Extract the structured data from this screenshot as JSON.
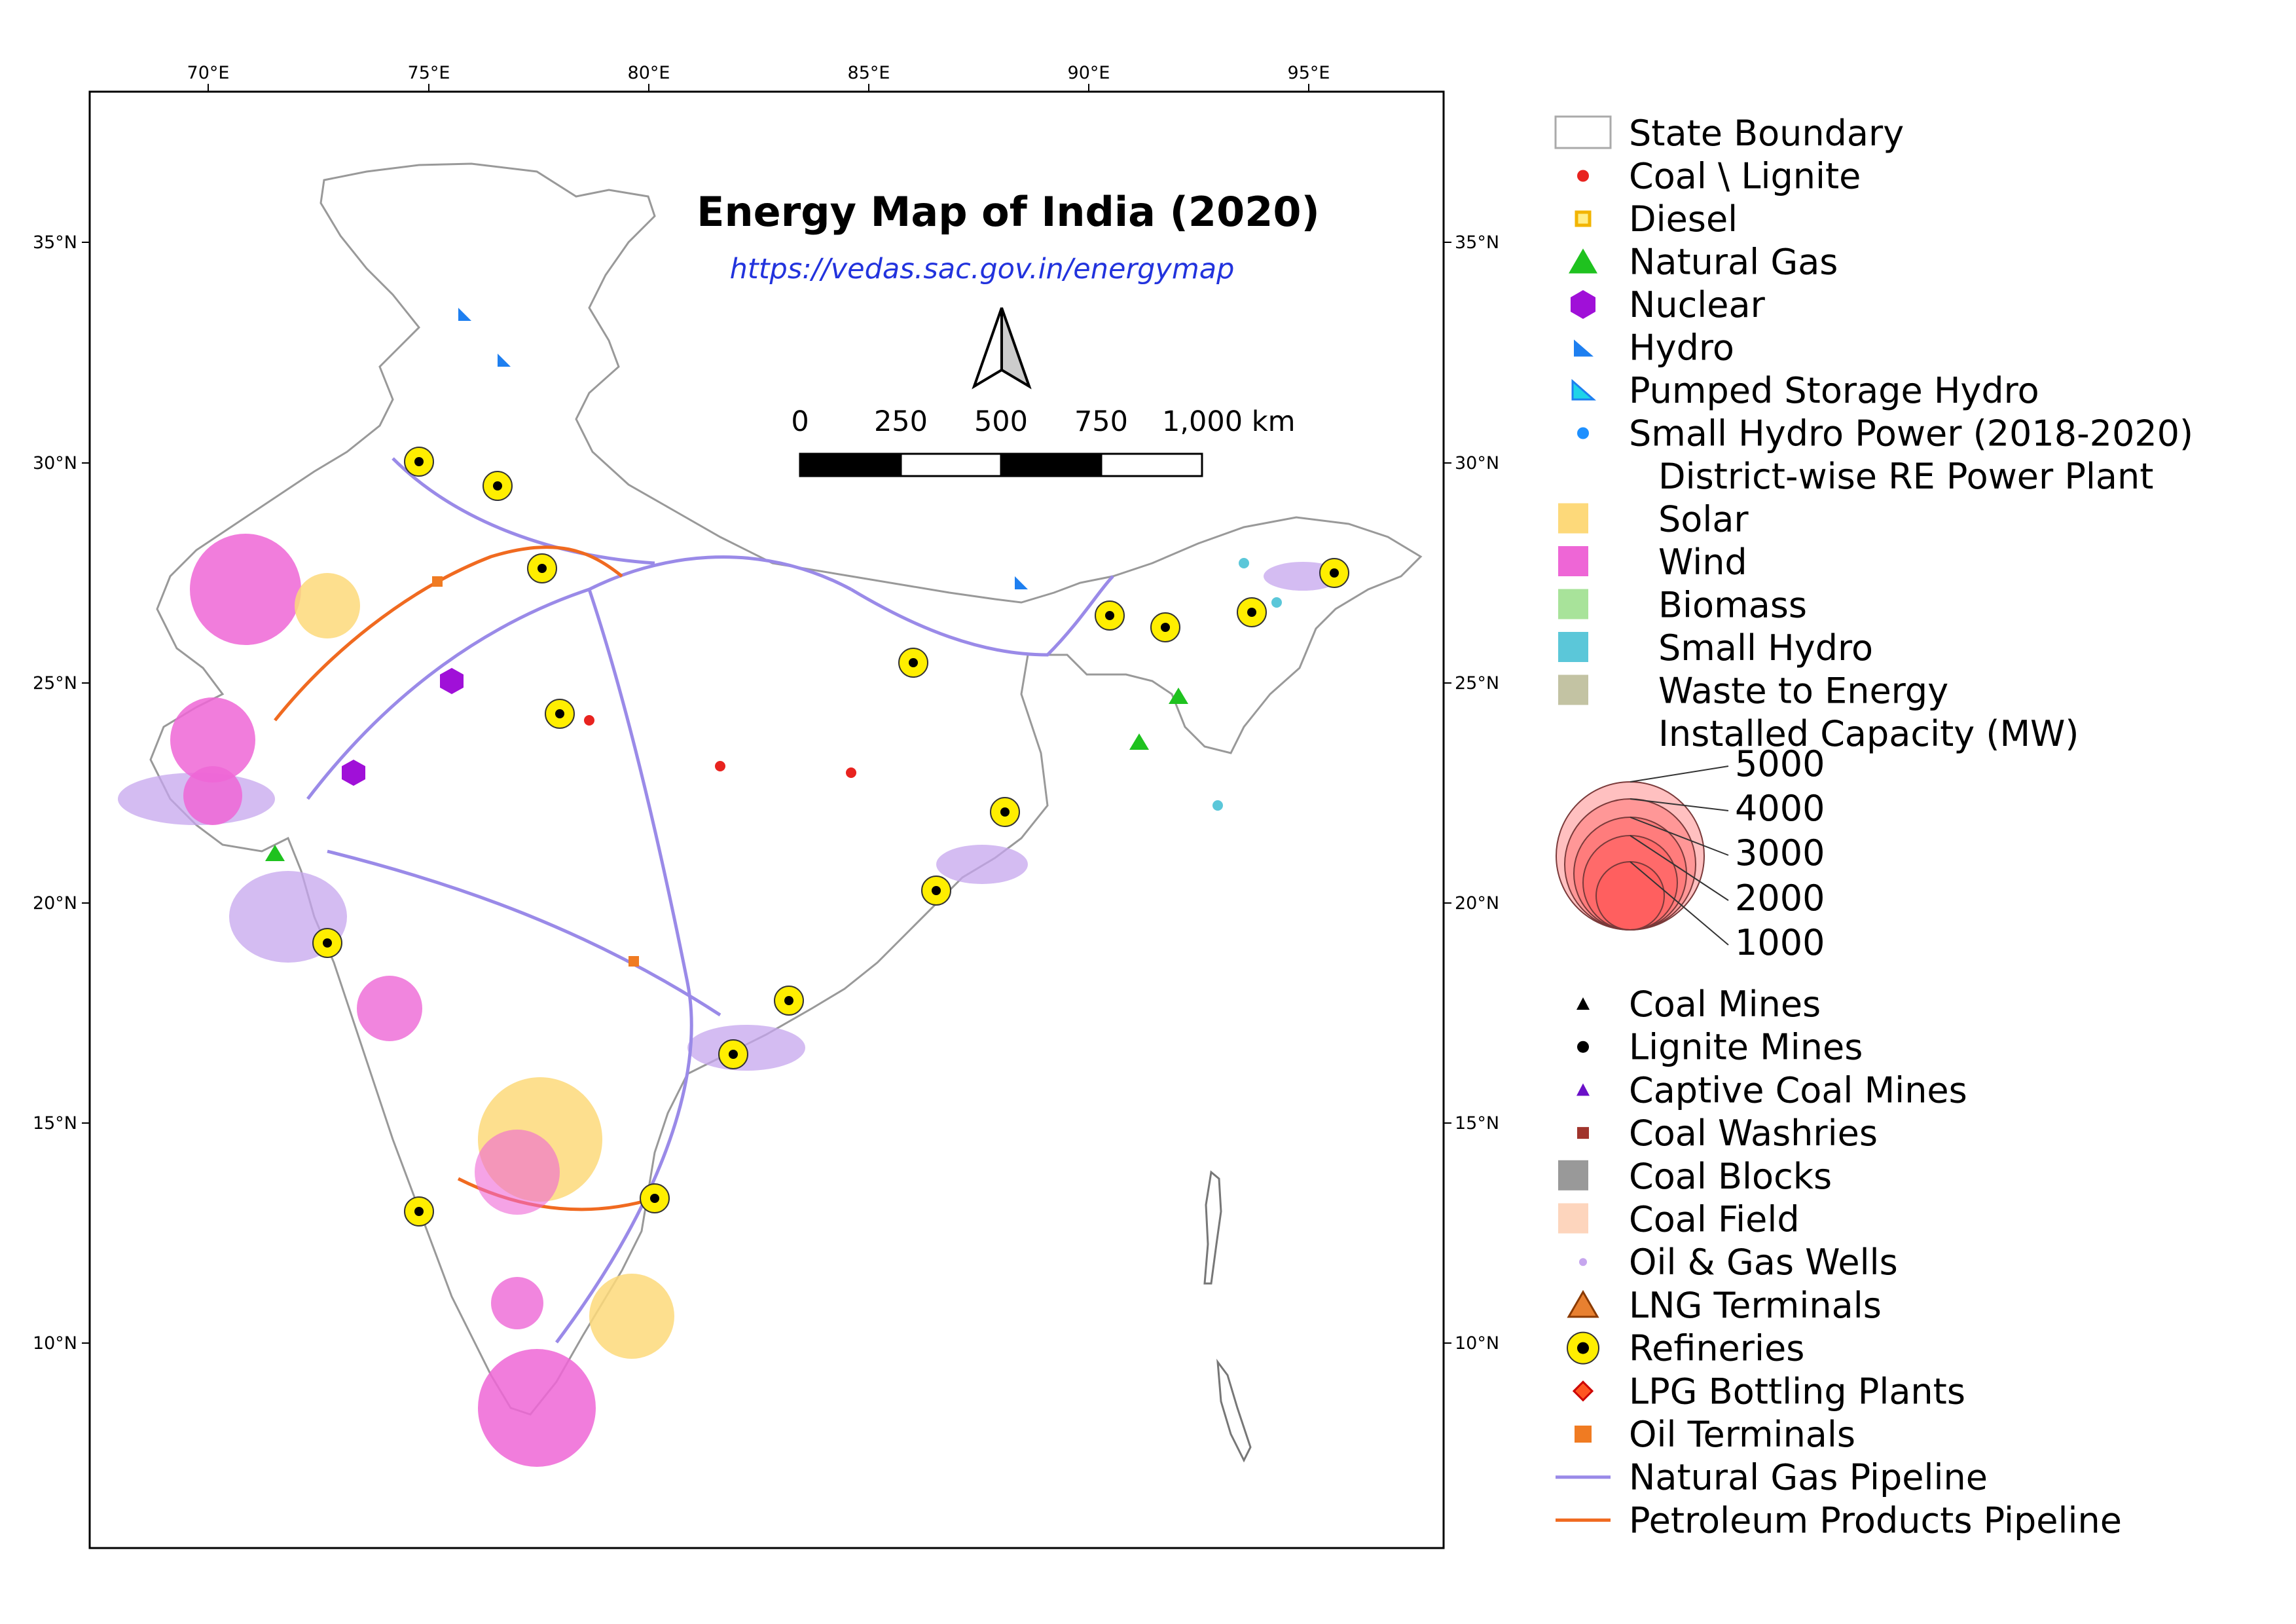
{
  "map": {
    "title": "Energy Map of India (2020)",
    "url": "https://vedas.sac.gov.in/energymap",
    "longitude_ticks": [
      "70°E",
      "75°E",
      "80°E",
      "85°E",
      "90°E",
      "95°E"
    ],
    "latitude_ticks": [
      "35°N",
      "30°N",
      "25°N",
      "20°N",
      "15°N",
      "10°N"
    ],
    "scale_bar": {
      "labels": [
        "0",
        "250",
        "500",
        "750",
        "1,000 km"
      ]
    }
  },
  "legend": {
    "items": [
      {
        "label": "State Boundary",
        "symbol": "box-outline",
        "color": "#aaaaaa"
      },
      {
        "label": "Coal \\ Lignite",
        "symbol": "dot",
        "color": "#e8231f"
      },
      {
        "label": "Diesel",
        "symbol": "square-outline",
        "color": "#f2b400"
      },
      {
        "label": "Natural Gas",
        "symbol": "triangle",
        "color": "#1fc21f"
      },
      {
        "label": "Nuclear",
        "symbol": "hexagon",
        "color": "#a010d8"
      },
      {
        "label": "Hydro",
        "symbol": "right-triangle",
        "color": "#1e7ff0"
      },
      {
        "label": "Pumped Storage Hydro",
        "symbol": "right-triangle-2",
        "color": "#1fd3e8"
      },
      {
        "label": "Small Hydro Power (2018-2020)",
        "symbol": "dot",
        "color": "#1e90ff"
      },
      {
        "label": "District-wise RE Power Plant",
        "symbol": "none",
        "color": "#ffffff"
      },
      {
        "label": "Solar",
        "symbol": "box",
        "color": "#fdd97a"
      },
      {
        "label": "Wind",
        "symbol": "box",
        "color": "#ee66d6"
      },
      {
        "label": "Biomass",
        "symbol": "box",
        "color": "#a8e39a"
      },
      {
        "label": "Small Hydro",
        "symbol": "box",
        "color": "#5bc7d9"
      },
      {
        "label": "Waste to Energy",
        "symbol": "box",
        "color": "#c3c3a3"
      },
      {
        "label": "Installed Capacity (MW)",
        "symbol": "none",
        "color": "#ffffff"
      }
    ],
    "capacity": {
      "values": [
        "5000",
        "4000",
        "3000",
        "2000",
        "1000"
      ],
      "color": "#ff4a4a"
    },
    "items2": [
      {
        "label": "Coal Mines",
        "symbol": "small-triangle",
        "color": "#000000"
      },
      {
        "label": "Lignite Mines",
        "symbol": "small-dot",
        "color": "#000000"
      },
      {
        "label": "Captive Coal Mines",
        "symbol": "small-triangle",
        "color": "#6a10c8"
      },
      {
        "label": "Coal Washries",
        "symbol": "small-square",
        "color": "#a0342c"
      },
      {
        "label": "Coal Blocks",
        "symbol": "box",
        "color": "#999999"
      },
      {
        "label": "Coal Field",
        "symbol": "box",
        "color": "#fdd5bd"
      },
      {
        "label": "Oil & Gas Wells",
        "symbol": "tiny-dot",
        "color": "#c6a6ee"
      },
      {
        "label": "LNG Terminals",
        "symbol": "lng-triangle",
        "color": "#e88030"
      },
      {
        "label": "Refineries",
        "symbol": "refinery",
        "color": "#ffee00"
      },
      {
        "label": "LPG Bottling Plants",
        "symbol": "diamond",
        "color": "#ff5522"
      },
      {
        "label": "Oil Terminals",
        "symbol": "square",
        "color": "#f07b22"
      },
      {
        "label": "Natural Gas Pipeline",
        "symbol": "line",
        "color": "#9a8ae8"
      },
      {
        "label": "Petroleum Products Pipeline",
        "symbol": "line",
        "color": "#f06a20"
      }
    ]
  }
}
